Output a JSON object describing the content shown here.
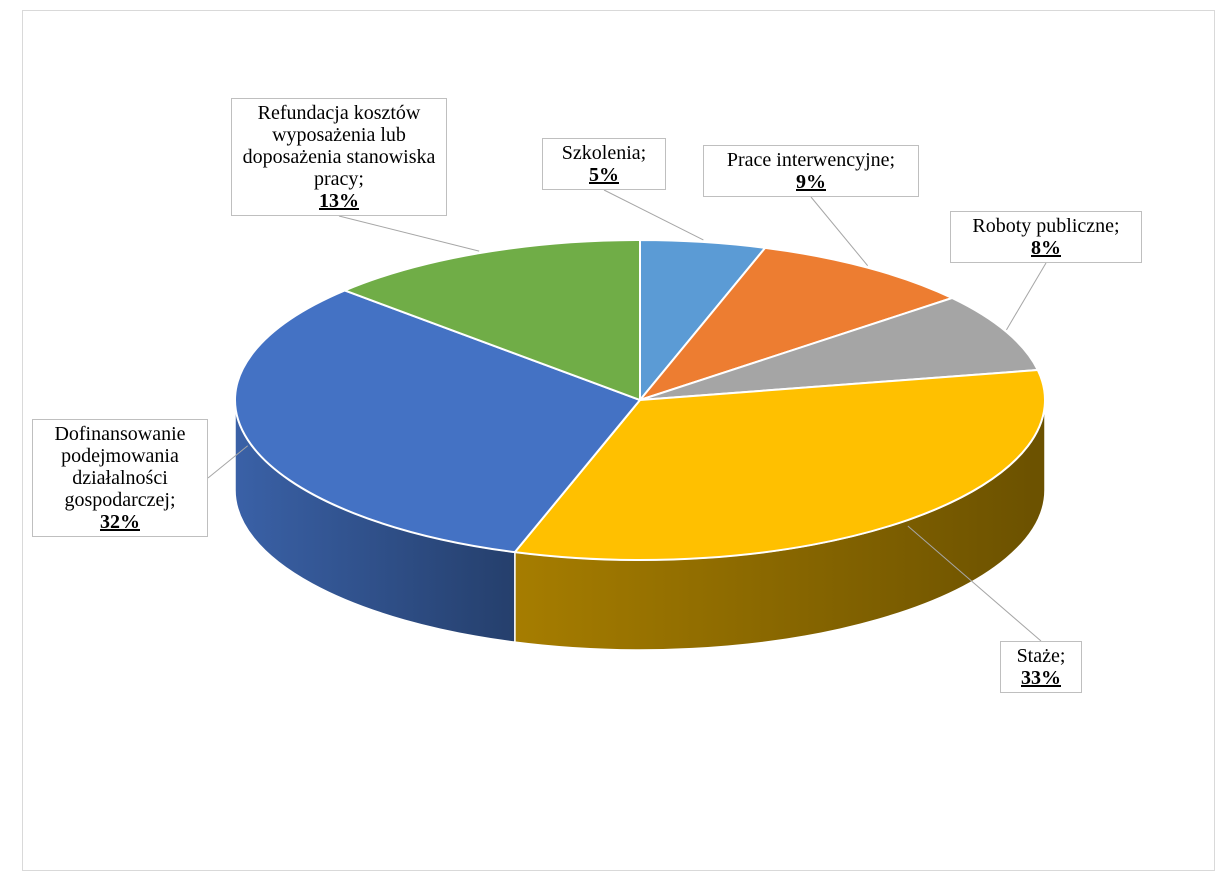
{
  "chart_data": {
    "type": "pie",
    "title": "",
    "categories": [
      "Szkolenia",
      "Prace interwencyjne",
      "Roboty publiczne",
      "Staże",
      "Dofinansowanie podejmowania działalności gospodarczej",
      "Refundacja kosztów wyposażenia lub doposażenia stanowiska pracy"
    ],
    "values": [
      5,
      9,
      8,
      33,
      32,
      13
    ],
    "colors": [
      "#5b9bd5",
      "#ed7d31",
      "#a5a5a5",
      "#ffc000",
      "#4472c4",
      "#70ad47"
    ],
    "data_labels": [
      {
        "category": "Szkolenia;",
        "value": "5%"
      },
      {
        "category": "Prace interwencyjne;",
        "value": "9%"
      },
      {
        "category": "Roboty publiczne;",
        "value": "8%"
      },
      {
        "category": "Staże;",
        "value": "33%"
      },
      {
        "category": "Dofinansowanie podejmowania działalności gospodarczej;",
        "value": "32%"
      },
      {
        "category": "Refundacja kosztów wyposażenia lub doposażenia stanowiska pracy;",
        "value": "13%"
      }
    ],
    "legend": "none",
    "style": "3d-pie"
  }
}
